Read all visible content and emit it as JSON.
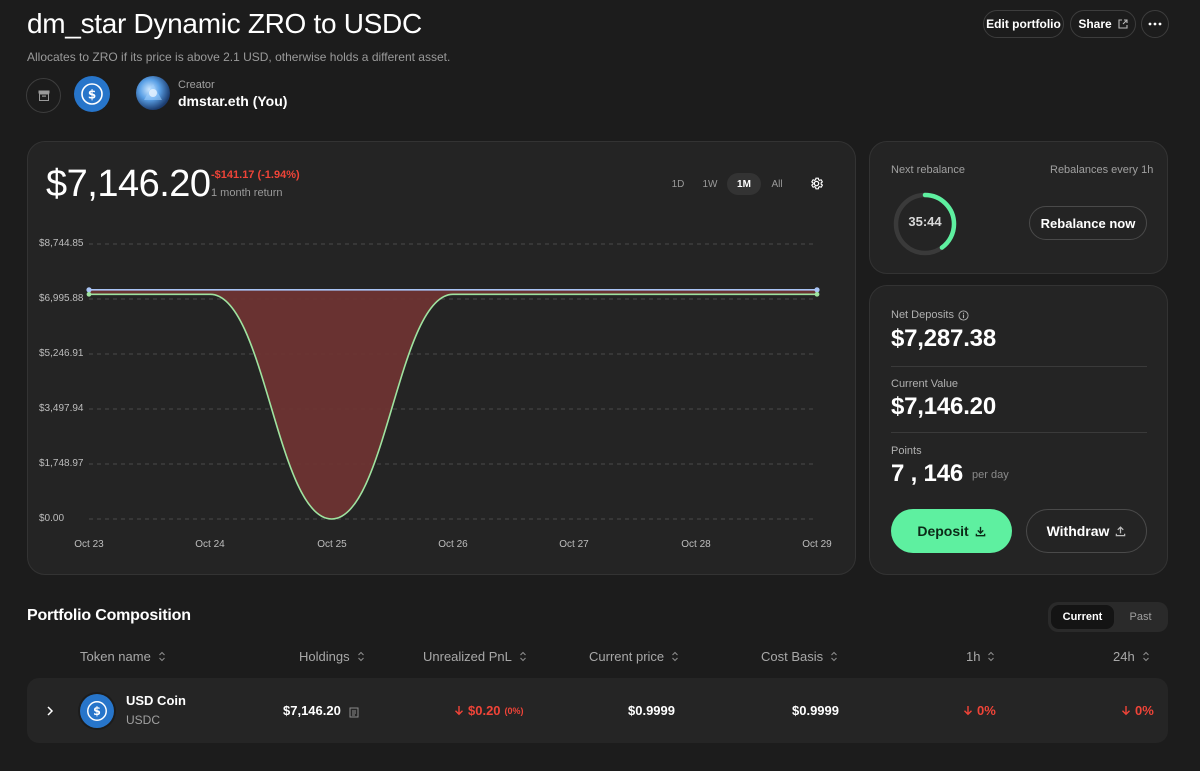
{
  "header": {
    "title": "dm_star Dynamic ZRO to USDC",
    "subtitle": "Allocates to ZRO if its price is above 2.1 USD, otherwise holds a different asset.",
    "edit_label": "Edit portfolio",
    "share_label": "Share",
    "creator_label": "Creator",
    "creator_name": "dmstar.eth (You)"
  },
  "chart_card": {
    "value": "$7,146.20",
    "change": "-$141.17 (-1.94%)",
    "change_sub": "1 month return",
    "ranges": [
      "1D",
      "1W",
      "1M",
      "All"
    ],
    "active_range": "1M"
  },
  "chart_data": {
    "type": "area",
    "x": [
      "Oct 23",
      "Oct 24",
      "Oct 25",
      "Oct 26",
      "Oct 27",
      "Oct 28",
      "Oct 29"
    ],
    "y_ticks": [
      "$8,744.85",
      "$6,995.88",
      "$5,246.91",
      "$3,497.94",
      "$1,748.97",
      "$0.00"
    ],
    "ylim": [
      0,
      8744.85
    ],
    "series": [
      {
        "values": [
          {
            "x": "Oct 23",
            "y": 7287.38
          },
          {
            "x": "Oct 29",
            "y": 7287.38
          }
        ],
        "color": "#a9c4f5"
      },
      {
        "values": [
          {
            "x": "Oct 23",
            "y": 7146.2
          },
          {
            "x": "Oct 24",
            "y": 7146.2
          },
          {
            "x": "Oct 25",
            "y": 0
          },
          {
            "x": "Oct 26",
            "y": 7146.2
          },
          {
            "x": "Oct 27",
            "y": 7146.2
          },
          {
            "x": "Oct 28",
            "y": 7146.2
          },
          {
            "x": "Oct 29",
            "y": 7146.2
          }
        ],
        "color": "#9fe3a0"
      }
    ],
    "grid": true
  },
  "rebalance": {
    "next_label": "Next rebalance",
    "every_label": "Rebalances every 1h",
    "timer": "35:44",
    "timer_progress": 0.4,
    "button_label": "Rebalance now"
  },
  "stats": {
    "net_deposits_label": "Net Deposits",
    "net_deposits_value": "$7,287.38",
    "current_value_label": "Current Value",
    "current_value_value": "$7,146.20",
    "points_label": "Points",
    "points_value": "7 , 146",
    "points_unit": "per day",
    "deposit_label": "Deposit",
    "withdraw_label": "Withdraw"
  },
  "composition": {
    "title": "Portfolio Composition",
    "tabs": [
      "Current",
      "Past"
    ],
    "headers": [
      "Token name",
      "Holdings",
      "Unrealized PnL",
      "Current price",
      "Cost Basis",
      "1h",
      "24h"
    ],
    "rows": [
      {
        "name": "USD Coin",
        "symbol": "USDC",
        "holdings": "$7,146.20",
        "pnl": "$0.20",
        "pnl_pct": "(0%)",
        "price": "$0.9999",
        "cost_basis": "$0.9999",
        "h1": "0%",
        "h24": "0%"
      }
    ]
  },
  "colors": {
    "accent_green": "#5ef0a0",
    "negative": "#f04438",
    "usdc_blue": "#2775ca",
    "chart_fill": "#6e3433"
  },
  "icons": [
    "archive-icon",
    "usdc-logo-icon",
    "external-link-icon",
    "more-icon",
    "gear-icon",
    "info-icon",
    "download-icon",
    "upload-icon",
    "sort-icon",
    "chevron-right-icon",
    "arrow-down-icon",
    "ledger-icon"
  ]
}
